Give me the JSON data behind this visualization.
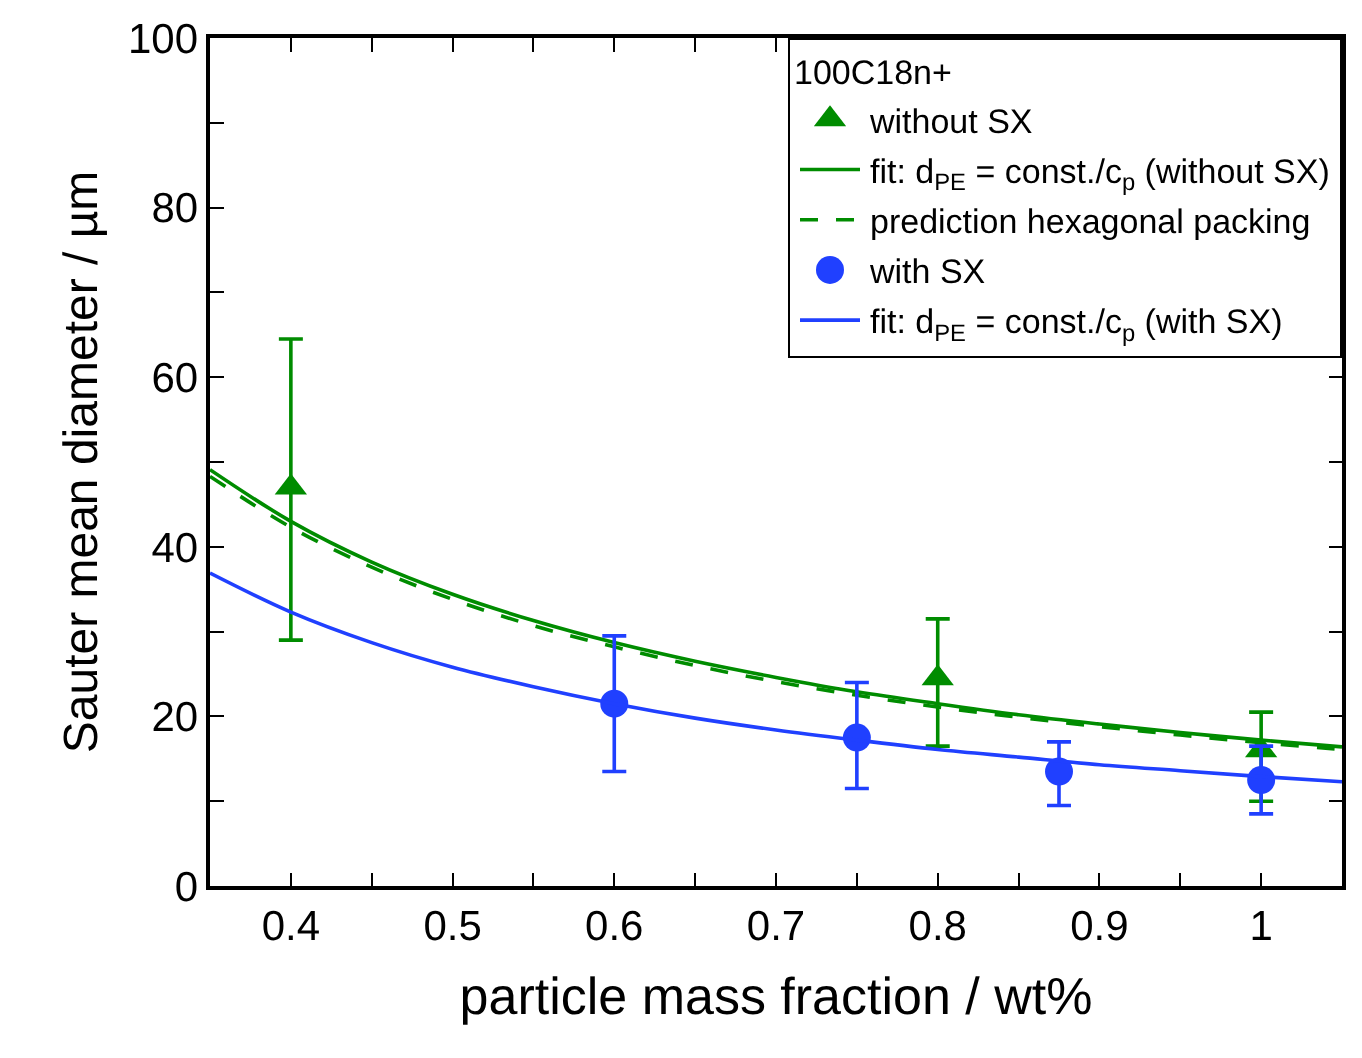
{
  "chart_data": {
    "type": "scatter",
    "xlabel": "particle mass fraction / wt%",
    "ylabel": "Sauter mean diameter / µm",
    "legend_title": "100C18n+",
    "legend": "top right",
    "xlim": [
      0.35,
      1.05
    ],
    "ylim": [
      0,
      100
    ],
    "xticks": [
      0.4,
      {
        "value": 0.45,
        "label": null
      },
      0.5,
      {
        "value": 0.55,
        "label": null
      },
      0.6,
      {
        "value": 0.65,
        "label": null
      },
      0.7,
      {
        "value": 0.75,
        "label": null
      },
      0.8,
      {
        "value": 0.85,
        "label": null
      },
      0.9,
      {
        "value": 0.95,
        "label": null
      },
      1
    ],
    "yticks": [
      0,
      {
        "value": 10,
        "label": null
      },
      20,
      {
        "value": 30,
        "label": null
      },
      40,
      {
        "value": 50,
        "label": null
      },
      60,
      {
        "value": 70,
        "label": null
      },
      80,
      {
        "value": 90,
        "label": null
      },
      100
    ],
    "series": [
      {
        "name": "without SX",
        "marker": "triangle",
        "color": "#008c00",
        "x": [
          0.4,
          0.8,
          1.0
        ],
        "values": [
          47,
          24.5,
          16
        ],
        "errors": [
          [
            29,
            64.5
          ],
          [
            16.5,
            31.5
          ],
          [
            10,
            20.5
          ]
        ]
      },
      {
        "name": "fit: d$_{PE}$ = const./c$_{p}$ (without SX)",
        "type": "line",
        "line_style": "solid",
        "marker": "none",
        "color": "#008c00",
        "x": [
          0.35,
          0.4,
          0.45,
          0.5,
          0.55,
          0.6,
          0.65,
          0.7,
          0.75,
          0.8,
          0.85,
          0.9,
          0.95,
          1.0,
          1.05
        ],
        "values": [
          49.1,
          43.0,
          38.2,
          34.4,
          31.3,
          28.7,
          26.5,
          24.6,
          22.9,
          21.5,
          20.2,
          19.1,
          18.1,
          17.2,
          16.4
        ]
      },
      {
        "name": "prediction hexagonal packing",
        "type": "line",
        "line_style": "dashed",
        "marker": "none",
        "color": "#008c00",
        "x": [
          0.35,
          0.4,
          0.45,
          0.5,
          0.55,
          0.6,
          0.65,
          0.7,
          0.75,
          0.8,
          0.85,
          0.9,
          0.95,
          1.0,
          1.05
        ],
        "values": [
          48.3,
          42.3,
          37.6,
          33.8,
          30.7,
          28.2,
          26.0,
          24.1,
          22.5,
          21.1,
          19.9,
          18.8,
          17.8,
          16.9,
          16.1
        ]
      },
      {
        "name": "with SX",
        "marker": "circle",
        "color": "#2040ff",
        "x": [
          0.6,
          0.75,
          0.875,
          1.0
        ],
        "values": [
          21.5,
          17.5,
          13.5,
          12.5
        ],
        "errors": [
          [
            13.5,
            29.5
          ],
          [
            11.5,
            24
          ],
          [
            9.5,
            17
          ],
          [
            8.5,
            16.5
          ]
        ]
      },
      {
        "name": "fit: d$_{PE}$ = const./c$_{p}$ (with SX)",
        "type": "line",
        "line_style": "solid",
        "marker": "none",
        "color": "#2040ff",
        "x": [
          0.35,
          0.4,
          0.45,
          0.5,
          0.55,
          0.6,
          0.65,
          0.7,
          0.75,
          0.8,
          0.85,
          0.9,
          0.95,
          1.0,
          1.05
        ],
        "values": [
          36.9,
          32.3,
          28.7,
          25.8,
          23.5,
          21.5,
          19.8,
          18.4,
          17.2,
          16.1,
          15.2,
          14.3,
          13.6,
          12.9,
          12.3
        ]
      }
    ]
  }
}
